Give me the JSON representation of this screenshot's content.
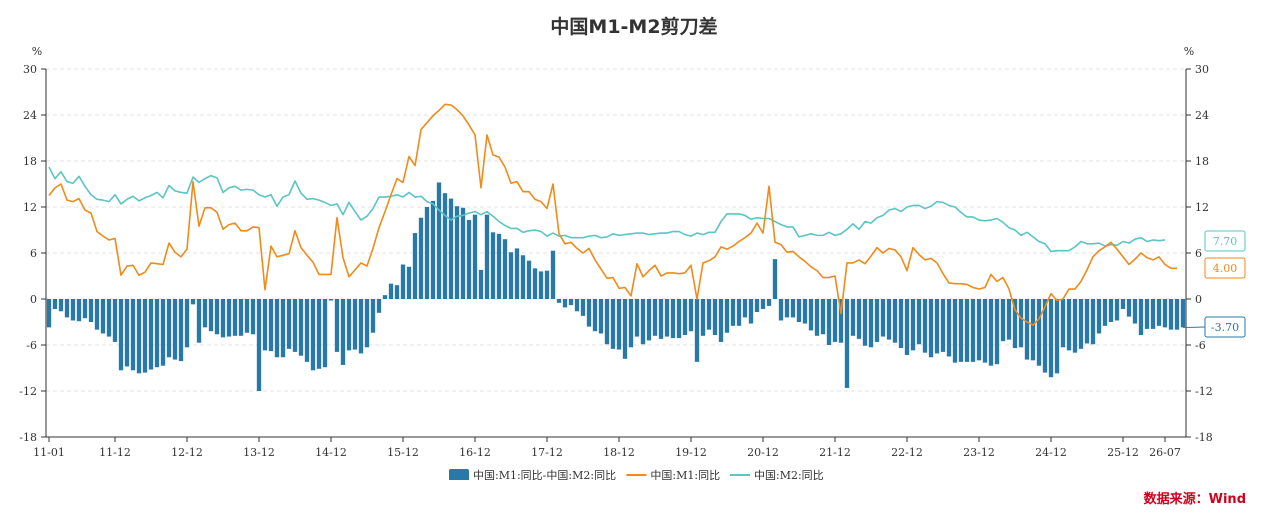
{
  "source_label": "数据来源：Wind",
  "chart_data": {
    "type": "bar+line",
    "title": "中国M1-M2剪刀差",
    "y_unit_left": "%",
    "y_unit_right": "%",
    "ylim": [
      -18,
      30
    ],
    "yticks": [
      -18,
      -12,
      -6,
      0,
      6,
      12,
      18,
      24,
      30
    ],
    "grid": true,
    "legend_position": "bottom-center",
    "x_tick_labels": [
      "11-01",
      "11-12",
      "12-12",
      "13-12",
      "14-12",
      "15-12",
      "16-12",
      "17-12",
      "18-12",
      "19-12",
      "20-12",
      "21-12",
      "22-12",
      "23-12",
      "24-12",
      "25-12",
      "26-07"
    ],
    "x_tick_index": [
      0,
      11,
      23,
      35,
      47,
      59,
      71,
      83,
      95,
      107,
      119,
      131,
      143,
      155,
      167,
      179,
      186
    ],
    "colors": {
      "gap": "#2878a8",
      "m1": "#f08a1a",
      "m2": "#5cc4c4"
    },
    "end_labels": {
      "m2": "7.70",
      "m1": "4.00",
      "gap": "-3.70"
    },
    "series": [
      {
        "name": "中国:M1:同比-中国:M2:同比",
        "kind": "bar",
        "values": [
          -3.7,
          -1.3,
          -1.6,
          -2.4,
          -2.8,
          -2.9,
          -2.5,
          -3.0,
          -4.0,
          -4.5,
          -4.9,
          -5.6,
          -9.3,
          -8.8,
          -9.3,
          -9.7,
          -9.6,
          -9.2,
          -8.9,
          -8.7,
          -7.6,
          -7.9,
          -8.1,
          -6.3,
          -0.7,
          -5.7,
          -3.7,
          -4.2,
          -4.6,
          -5.0,
          -4.9,
          -4.8,
          -4.8,
          -4.4,
          -4.6,
          -12.0,
          -6.7,
          -6.8,
          -7.6,
          -7.6,
          -6.5,
          -6.9,
          -7.4,
          -8.2,
          -9.3,
          -9.1,
          -8.9,
          -0.2,
          -6.9,
          -8.6,
          -6.7,
          -6.6,
          -7.1,
          -6.3,
          -4.4,
          -1.8,
          0.5,
          2.0,
          1.8,
          4.5,
          4.2,
          8.6,
          10.6,
          12.0,
          12.8,
          15.2,
          13.8,
          13.1,
          12.1,
          11.9,
          10.3,
          11.0,
          3.8,
          11.0,
          8.7,
          8.5,
          7.8,
          6.1,
          6.6,
          5.7,
          5.0,
          4.0,
          3.6,
          3.7,
          6.3,
          -0.5,
          -1.1,
          -0.8,
          -1.6,
          -2.2,
          -3.6,
          -4.2,
          -4.5,
          -5.9,
          -6.5,
          -6.6,
          -7.8,
          -6.3,
          -4.9,
          -5.9,
          -5.4,
          -4.8,
          -5.2,
          -4.9,
          -5.1,
          -5.1,
          -4.7,
          -4.2,
          -8.2,
          -4.8,
          -4.0,
          -4.7,
          -5.6,
          -4.4,
          -3.5,
          -3.5,
          -2.4,
          -3.2,
          -1.7,
          -1.3,
          -0.9,
          5.2,
          -2.8,
          -2.4,
          -2.4,
          -3.0,
          -3.2,
          -4.1,
          -4.8,
          -4.6,
          -6.0,
          -5.6,
          -5.7,
          -11.6,
          -4.8,
          -5.2,
          -6.1,
          -6.3,
          -5.6,
          -4.9,
          -5.3,
          -5.7,
          -6.4,
          -7.3,
          -6.7,
          -5.9,
          -7.0,
          -7.6,
          -7.1,
          -6.9,
          -7.5,
          -8.3,
          -8.2,
          -8.2,
          -8.2,
          -8.0,
          -8.3,
          -8.7,
          -8.5,
          -5.5,
          -5.3,
          -6.4,
          -6.3,
          -7.9,
          -8.0,
          -8.7,
          -9.6,
          -10.2,
          -9.7,
          -6.3,
          -6.7,
          -7.0,
          -6.5,
          -5.8,
          -5.9,
          -4.5,
          -3.5,
          -3.0,
          -2.8,
          -1.3,
          -2.3,
          -3.2,
          -4.7,
          -3.9,
          -3.9,
          -3.5,
          -3.7,
          -4.0,
          -4.0,
          -3.7
        ]
      },
      {
        "name": "中国:M1:同比",
        "kind": "line",
        "values": [
          13.5,
          14.5,
          15.0,
          12.9,
          12.7,
          13.1,
          11.6,
          11.2,
          8.8,
          8.2,
          7.7,
          7.9,
          3.1,
          4.3,
          4.4,
          3.1,
          3.5,
          4.7,
          4.6,
          4.5,
          7.3,
          6.1,
          5.5,
          6.5,
          15.3,
          9.5,
          11.9,
          11.9,
          11.3,
          9.1,
          9.7,
          9.9,
          8.9,
          8.9,
          9.4,
          9.3,
          1.2,
          6.9,
          5.5,
          5.7,
          5.9,
          8.9,
          6.7,
          5.7,
          4.8,
          3.2,
          3.2,
          3.2,
          10.6,
          5.4,
          2.9,
          3.8,
          4.7,
          4.3,
          6.6,
          9.3,
          11.4,
          13.6,
          15.7,
          15.2,
          18.6,
          17.4,
          22.1,
          23.0,
          23.9,
          24.6,
          25.4,
          25.3,
          24.7,
          23.9,
          22.7,
          21.4,
          14.5,
          21.4,
          18.8,
          18.5,
          17.2,
          15.1,
          15.3,
          14.0,
          14.0,
          13.0,
          12.7,
          11.8,
          15.0,
          8.5,
          7.2,
          7.4,
          6.6,
          6.0,
          6.6,
          5.1,
          3.9,
          2.7,
          2.8,
          1.4,
          1.5,
          0.4,
          4.6,
          2.9,
          3.7,
          4.4,
          3.0,
          3.4,
          3.4,
          3.3,
          3.4,
          4.4,
          0.0,
          4.7,
          5.0,
          5.5,
          6.8,
          6.5,
          6.9,
          7.5,
          8.0,
          8.6,
          9.9,
          8.6,
          14.7,
          7.4,
          7.1,
          6.1,
          6.2,
          5.5,
          4.9,
          4.2,
          3.7,
          2.8,
          2.8,
          3.0,
          -1.9,
          4.7,
          4.7,
          5.1,
          4.6,
          5.6,
          6.7,
          6.0,
          6.6,
          6.4,
          5.5,
          3.7,
          6.7,
          5.8,
          5.1,
          5.3,
          4.7,
          3.3,
          2.1,
          2.0,
          2.0,
          1.9,
          1.5,
          1.3,
          1.5,
          3.2,
          2.3,
          2.8,
          1.3,
          -1.4,
          -2.5,
          -3.0,
          -3.4,
          -2.6,
          -1.0,
          0.7,
          -0.2,
          0.0,
          1.3,
          1.3,
          2.3,
          3.8,
          5.5,
          6.3,
          6.8,
          7.4,
          6.5,
          5.5,
          4.5,
          5.2,
          6.0,
          5.4,
          5.1,
          5.5,
          4.5,
          4.0,
          4.0
        ]
      },
      {
        "name": "中国:M2:同比",
        "kind": "line",
        "values": [
          17.2,
          15.7,
          16.6,
          15.3,
          15.1,
          16.0,
          14.7,
          13.6,
          13.0,
          12.9,
          12.7,
          13.6,
          12.4,
          13.0,
          13.4,
          12.8,
          13.2,
          13.5,
          13.9,
          13.2,
          14.8,
          14.1,
          13.9,
          13.8,
          15.9,
          15.2,
          15.7,
          16.1,
          15.8,
          13.9,
          14.5,
          14.7,
          14.2,
          14.3,
          14.2,
          13.6,
          13.3,
          13.6,
          12.1,
          13.3,
          13.6,
          15.4,
          13.8,
          13.0,
          13.1,
          12.9,
          12.6,
          12.2,
          12.4,
          11.0,
          12.6,
          11.4,
          10.3,
          10.8,
          11.8,
          13.3,
          13.3,
          13.4,
          13.6,
          13.3,
          13.9,
          13.3,
          13.4,
          12.7,
          12.4,
          11.6,
          10.9,
          10.3,
          10.8,
          10.9,
          11.2,
          11.4,
          11.0,
          11.4,
          10.8,
          10.1,
          9.6,
          9.2,
          9.2,
          8.7,
          8.9,
          9.0,
          8.8,
          8.2,
          8.6,
          8.2,
          8.3,
          8.0,
          8.0,
          8.0,
          8.2,
          8.3,
          8.0,
          8.1,
          8.5,
          8.3,
          8.4,
          8.5,
          8.6,
          8.6,
          8.4,
          8.5,
          8.6,
          8.6,
          8.8,
          8.8,
          8.4,
          8.2,
          8.6,
          8.4,
          8.7,
          8.7,
          10.1,
          11.1,
          11.1,
          11.1,
          10.9,
          10.4,
          10.6,
          10.5,
          10.5,
          10.1,
          9.7,
          9.4,
          9.4,
          8.1,
          8.3,
          8.5,
          8.3,
          8.3,
          8.7,
          8.3,
          8.5,
          9.1,
          9.8,
          9.1,
          10.1,
          9.9,
          10.6,
          10.9,
          11.6,
          11.8,
          11.4,
          12.0,
          12.2,
          12.2,
          11.8,
          12.1,
          12.7,
          12.6,
          12.2,
          12.0,
          11.3,
          10.7,
          10.7,
          10.3,
          10.2,
          10.3,
          10.5,
          10.0,
          9.3,
          9.0,
          8.3,
          8.7,
          8.1,
          7.5,
          7.2,
          6.2,
          6.3,
          6.3,
          6.3,
          6.8,
          7.5,
          7.2,
          7.2,
          7.3,
          6.9,
          7.1,
          7.0,
          7.5,
          7.3,
          7.8,
          8.0,
          7.5,
          7.7,
          7.6,
          7.7
        ]
      }
    ]
  }
}
